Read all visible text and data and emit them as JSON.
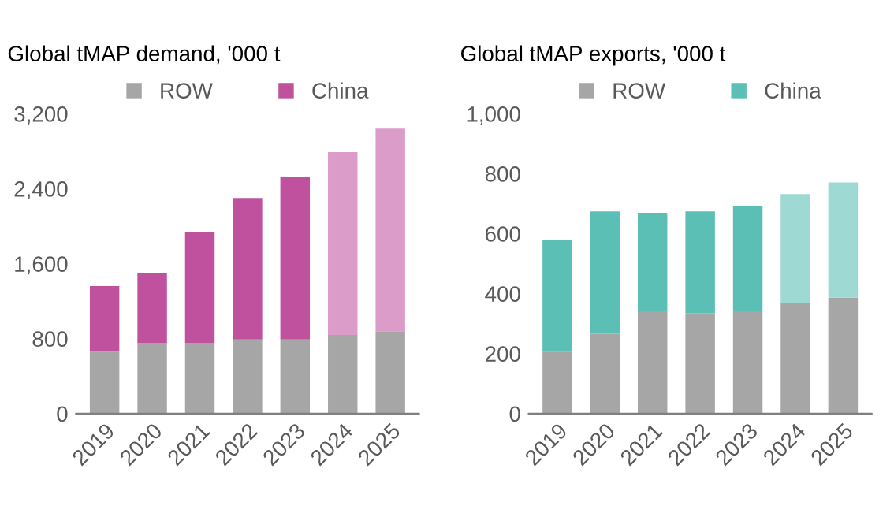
{
  "chart_data": [
    {
      "type": "bar",
      "title": "Global tMAP demand, '000 t",
      "stacked": true,
      "legend": "top",
      "grid": false,
      "categories": [
        "2019",
        "2020",
        "2021",
        "2022",
        "2023",
        "2024",
        "2025"
      ],
      "series": [
        {
          "name": "ROW",
          "color": "#a6a6a6",
          "colors": [
            "#a6a6a6",
            "#a6a6a6",
            "#a6a6a6",
            "#a6a6a6",
            "#a6a6a6",
            "#a6a6a6",
            "#a6a6a6"
          ],
          "values": [
            660,
            750,
            750,
            790,
            790,
            840,
            880
          ]
        },
        {
          "name": "China",
          "color": "#c0519f",
          "colors": [
            "#c0519f",
            "#c0519f",
            "#c0519f",
            "#c0519f",
            "#c0519f",
            "#dc9cca",
            "#dc9cca"
          ],
          "values": [
            700,
            750,
            1190,
            1510,
            1740,
            1950,
            2160
          ]
        }
      ],
      "ylim": [
        0,
        3200
      ],
      "yticks": [
        {
          "value": 0,
          "label": "0"
        },
        {
          "value": 800,
          "label": "800"
        },
        {
          "value": 1600,
          "label": "1,600"
        },
        {
          "value": 2400,
          "label": "2,400"
        },
        {
          "value": 3200,
          "label": "3,200"
        }
      ]
    },
    {
      "type": "bar",
      "title": "Global tMAP exports, '000 t",
      "stacked": true,
      "legend": "top",
      "grid": false,
      "categories": [
        "2019",
        "2020",
        "2021",
        "2022",
        "2023",
        "2024",
        "2025"
      ],
      "series": [
        {
          "name": "ROW",
          "color": "#a6a6a6",
          "colors": [
            "#a6a6a6",
            "#a6a6a6",
            "#a6a6a6",
            "#a6a6a6",
            "#a6a6a6",
            "#a6a6a6",
            "#a6a6a6"
          ],
          "values": [
            205,
            266,
            342,
            335,
            342,
            369,
            387
          ]
        },
        {
          "name": "China",
          "color": "#5bbfb5",
          "colors": [
            "#5bbfb5",
            "#5bbfb5",
            "#5bbfb5",
            "#5bbfb5",
            "#5bbfb5",
            "#9ed9d3",
            "#9ed9d3"
          ],
          "values": [
            374,
            408,
            328,
            339,
            350,
            363,
            384
          ]
        }
      ],
      "ylim": [
        0,
        1000
      ],
      "yticks": [
        {
          "value": 0,
          "label": "0"
        },
        {
          "value": 200,
          "label": "200"
        },
        {
          "value": 400,
          "label": "400"
        },
        {
          "value": 600,
          "label": "600"
        },
        {
          "value": 800,
          "label": "800"
        },
        {
          "value": 1000,
          "label": "1,000"
        }
      ]
    }
  ]
}
